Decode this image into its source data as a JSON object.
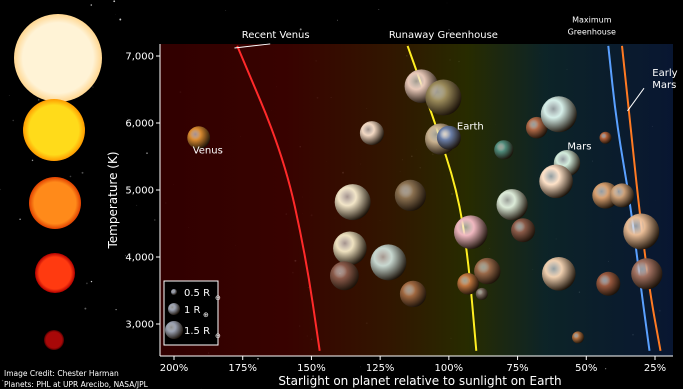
{
  "chart_data": {
    "type": "scatter",
    "title": "",
    "xlabel": "Starlight on planet relative to sunlight on Earth",
    "ylabel": "Temperature (K)",
    "xlim": [
      200,
      15
    ],
    "ylim": [
      2600,
      7200
    ],
    "x_ticks": [
      200,
      175,
      150,
      125,
      100,
      75,
      50,
      25
    ],
    "x_tick_labels": [
      "200%",
      "175%",
      "150%",
      "125%",
      "100%",
      "75%",
      "50%",
      "25%"
    ],
    "y_ticks": [
      3000,
      4000,
      5000,
      6000,
      7000
    ],
    "y_tick_labels": [
      "3,000",
      "4,000",
      "5,000",
      "6,000",
      "7,000"
    ],
    "grid": false,
    "background": "habitable-zone gradient from red (hot) through yellow-green to blue (cold)",
    "boundaries": [
      {
        "name": "Recent Venus",
        "color": "#ff2a2a",
        "points": [
          [
            177,
            7150
          ],
          [
            160,
            5500
          ],
          [
            152,
            4000
          ],
          [
            147,
            2600
          ]
        ]
      },
      {
        "name": "Runaway Greenhouse",
        "color": "#ffee22",
        "points": [
          [
            115,
            7150
          ],
          [
            105,
            6000
          ],
          [
            97,
            5000
          ],
          [
            93,
            4000
          ],
          [
            90,
            2600
          ]
        ]
      },
      {
        "name": "Maximum Greenhouse",
        "color": "#5aa0ff",
        "points": [
          [
            42,
            7150
          ],
          [
            39,
            6000
          ],
          [
            34,
            4800
          ],
          [
            30,
            3500
          ],
          [
            27,
            2600
          ]
        ]
      },
      {
        "name": "Early Mars",
        "color": "#ff7a22",
        "points": [
          [
            37,
            7150
          ],
          [
            34,
            6000
          ],
          [
            31,
            4800
          ],
          [
            27,
            3500
          ],
          [
            23,
            2600
          ]
        ]
      }
    ],
    "boundary_labels": [
      {
        "text": "Recent Venus",
        "x": 163,
        "y": 7270
      },
      {
        "text": "Runaway Greenhouse",
        "x": 102,
        "y": 7270
      },
      {
        "text": "Maximum",
        "x": 48,
        "y": 7500
      },
      {
        "text": "Greenhouse",
        "x": 48,
        "y": 7320
      },
      {
        "text": "Early",
        "x": 26,
        "y": 6700
      },
      {
        "text": "Mars",
        "x": 26,
        "y": 6520
      }
    ],
    "solar_system": [
      {
        "name": "Venus",
        "x": 191,
        "y": 5780,
        "r": 0.95,
        "color": "#d98a30"
      },
      {
        "name": "Earth",
        "x": 100,
        "y": 5780,
        "r": 1.0,
        "color": "#6b7fa8"
      },
      {
        "name": "Mars",
        "x": 43,
        "y": 5780,
        "r": 0.5,
        "color": "#b0603a"
      }
    ],
    "series": [
      {
        "name": "Exoplanets",
        "points": [
          {
            "x": 110,
            "y": 6550,
            "r": 1.4,
            "color": "#e8c8b8"
          },
          {
            "x": 102,
            "y": 6380,
            "r": 1.5,
            "color": "#9a8a5a"
          },
          {
            "x": 128,
            "y": 5850,
            "r": 1.0,
            "color": "#f3d9c3"
          },
          {
            "x": 103,
            "y": 5760,
            "r": 1.3,
            "color": "#c9b290"
          },
          {
            "x": 80,
            "y": 5600,
            "r": 0.8,
            "color": "#4f8a7a"
          },
          {
            "x": 68,
            "y": 5930,
            "r": 0.9,
            "color": "#b06a48"
          },
          {
            "x": 60,
            "y": 6130,
            "r": 1.5,
            "color": "#d6efe9"
          },
          {
            "x": 57,
            "y": 5400,
            "r": 1.1,
            "color": "#d2ecdc"
          },
          {
            "x": 61,
            "y": 5130,
            "r": 1.4,
            "color": "#ffe2c8"
          },
          {
            "x": 43,
            "y": 4920,
            "r": 1.1,
            "color": "#d8a070"
          },
          {
            "x": 37,
            "y": 4920,
            "r": 1.0,
            "color": "#cca078"
          },
          {
            "x": 135,
            "y": 4820,
            "r": 1.5,
            "color": "#f3e6c8"
          },
          {
            "x": 114,
            "y": 4920,
            "r": 1.3,
            "color": "#8a7050"
          },
          {
            "x": 77,
            "y": 4780,
            "r": 1.3,
            "color": "#dcebd8"
          },
          {
            "x": 92,
            "y": 4370,
            "r": 1.4,
            "color": "#f0b8c0"
          },
          {
            "x": 73,
            "y": 4400,
            "r": 1.0,
            "color": "#8a5a48"
          },
          {
            "x": 136,
            "y": 4130,
            "r": 1.4,
            "color": "#efe2c0"
          },
          {
            "x": 122,
            "y": 3920,
            "r": 1.5,
            "color": "#c8d8d0"
          },
          {
            "x": 138,
            "y": 3720,
            "r": 1.2,
            "color": "#8a5a4a"
          },
          {
            "x": 86,
            "y": 3790,
            "r": 1.1,
            "color": "#9a6a4a"
          },
          {
            "x": 93,
            "y": 3600,
            "r": 0.9,
            "color": "#c0763f"
          },
          {
            "x": 88,
            "y": 3450,
            "r": 0.5,
            "color": "#7a6a60"
          },
          {
            "x": 113,
            "y": 3450,
            "r": 1.1,
            "color": "#a06840"
          },
          {
            "x": 60,
            "y": 3750,
            "r": 1.4,
            "color": "#f0d0b0"
          },
          {
            "x": 30,
            "y": 4380,
            "r": 1.5,
            "color": "#e8bc96"
          },
          {
            "x": 28,
            "y": 3750,
            "r": 1.3,
            "color": "#a07060"
          },
          {
            "x": 42,
            "y": 3600,
            "r": 1.0,
            "color": "#9a5a40"
          },
          {
            "x": 53,
            "y": 2800,
            "r": 0.5,
            "color": "#b07040"
          }
        ]
      }
    ],
    "legend": {
      "placement": "bottom-left",
      "items": [
        {
          "label": "0.5 R",
          "sub": "⊕",
          "r": 0.5
        },
        {
          "label": "1 R",
          "sub": "⊕",
          "r": 1.0
        },
        {
          "label": "1.5 R",
          "sub": "⊕",
          "r": 1.5
        }
      ]
    },
    "stars": [
      {
        "color": "#fff3d6",
        "glow": "#ffd690"
      },
      {
        "color": "#ffdb1a",
        "glow": "#ff9a00"
      },
      {
        "color": "#ff8a1a",
        "glow": "#e04000"
      },
      {
        "color": "#ff3a10",
        "glow": "#b00000"
      },
      {
        "color": "#a80808",
        "glow": "#500000"
      }
    ]
  },
  "credits": {
    "line1": "Image Credit: Chester Harman",
    "line2": "Planets: PHL at UPR Arecibo, NASA/JPL"
  }
}
